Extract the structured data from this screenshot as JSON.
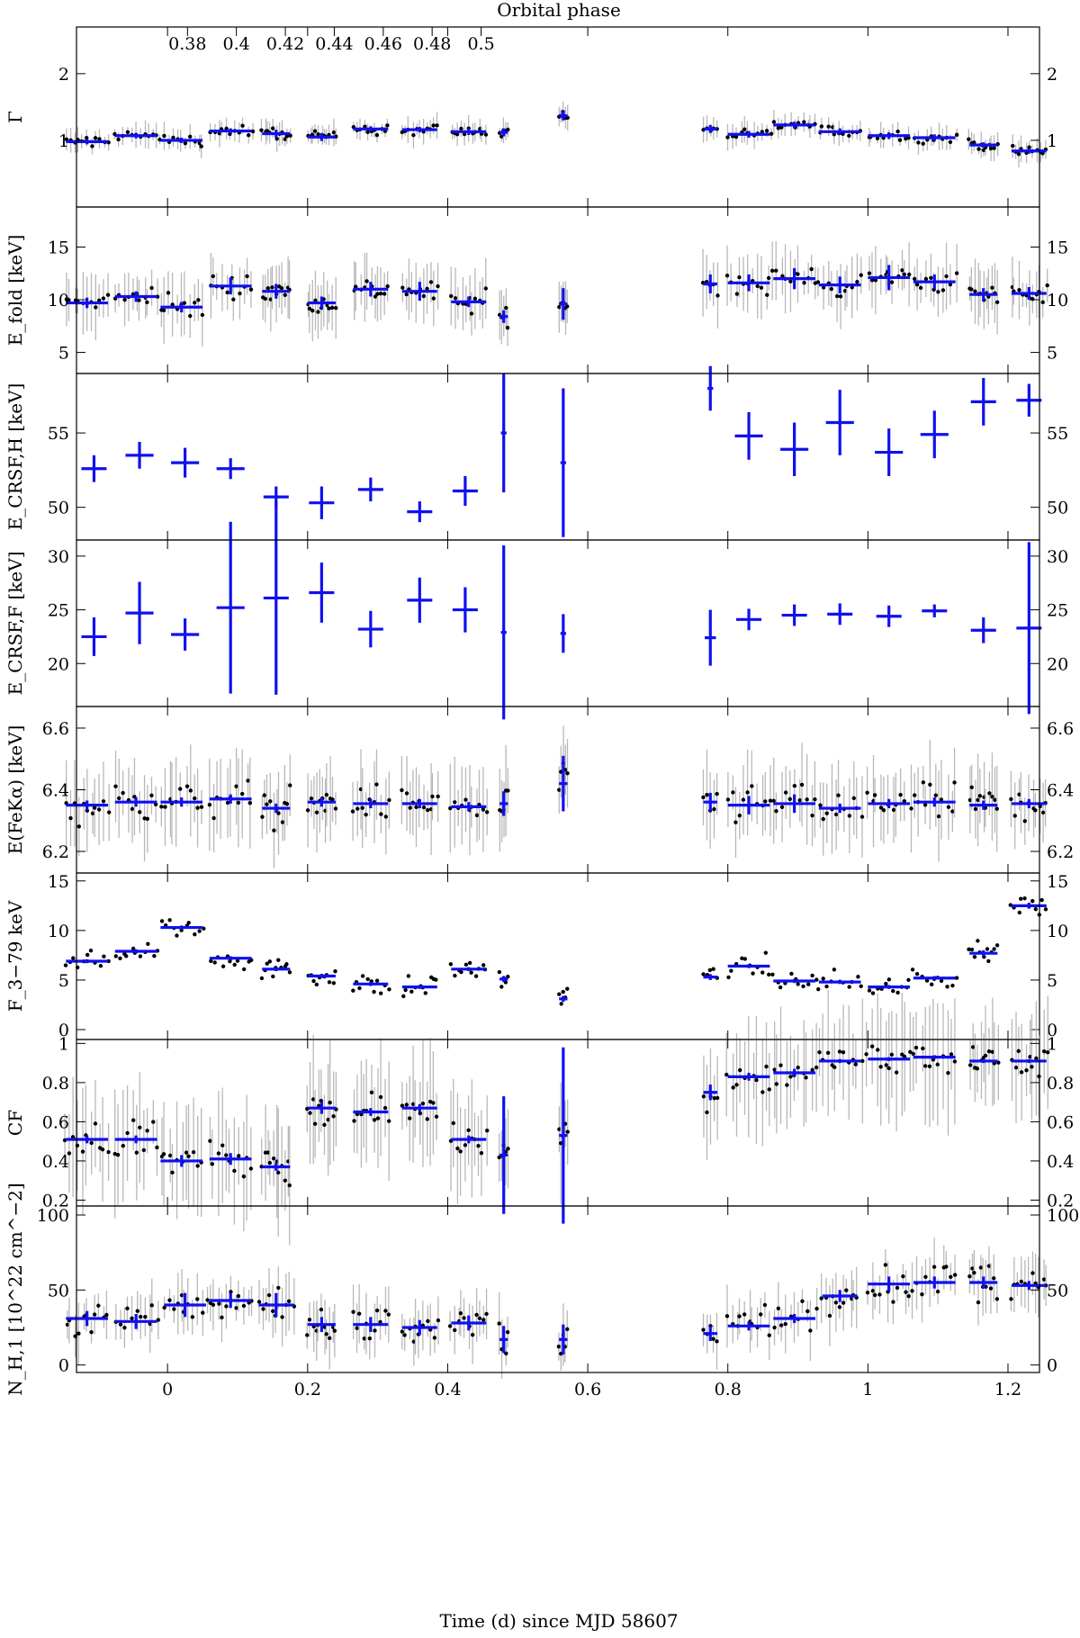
{
  "chart_data": {
    "type": "scatter",
    "xlabel": "Time (d) since MJD 58607",
    "top_xlabel": "Orbital phase",
    "xlim": [
      -0.13,
      1.245
    ],
    "x_ticks": [
      0,
      0.2,
      0.4,
      0.6,
      0.8,
      1,
      1.2
    ],
    "x_tick_labels": [
      "0",
      "0.2",
      "0.4",
      "0.6",
      "0.8",
      "1",
      "1.2"
    ],
    "phase_tick_labels": [
      "0.38",
      "0.4",
      "0.42",
      "0.44",
      "0.46",
      "0.48",
      "0.5"
    ],
    "phase_tick_x": [
      0.0285,
      0.0983,
      0.1682,
      0.2381,
      0.308,
      0.3778,
      0.4477
    ],
    "colors": {
      "binned": "#1010f0",
      "points": "#000000",
      "errors": "#b8b8b8"
    },
    "panels": [
      {
        "ylabel": "Γ",
        "ylim": [
          0.0,
          2.7
        ],
        "ticks": [
          1,
          2
        ],
        "tick_labels": [
          "1",
          "2"
        ],
        "binned": [
          [
            -0.115,
            0.98,
            0.03,
            0.04
          ],
          [
            -0.045,
            1.07,
            0.03,
            0.04
          ],
          [
            0.02,
            1.0,
            0.03,
            0.04
          ],
          [
            0.09,
            1.14,
            0.03,
            0.04
          ],
          [
            0.155,
            1.1,
            0.02,
            0.06
          ],
          [
            0.22,
            1.05,
            0.02,
            0.06
          ],
          [
            0.29,
            1.17,
            0.025,
            0.04
          ],
          [
            0.36,
            1.16,
            0.025,
            0.04
          ],
          [
            0.43,
            1.13,
            0.025,
            0.05
          ],
          [
            0.48,
            1.12,
            0.006,
            0.06
          ],
          [
            0.565,
            1.37,
            0.006,
            0.07
          ],
          [
            0.775,
            1.17,
            0.01,
            0.06
          ],
          [
            0.83,
            1.09,
            0.03,
            0.05
          ],
          [
            0.895,
            1.23,
            0.03,
            0.05
          ],
          [
            0.96,
            1.13,
            0.03,
            0.05
          ],
          [
            1.03,
            1.07,
            0.03,
            0.05
          ],
          [
            1.095,
            1.04,
            0.03,
            0.05
          ],
          [
            1.165,
            0.93,
            0.02,
            0.04
          ],
          [
            1.23,
            0.84,
            0.025,
            0.04
          ]
        ],
        "scatter_std": 0.07,
        "error_size": 0.14
      },
      {
        "ylabel": "E_fold [keV]",
        "ylim": [
          3.0,
          18.8
        ],
        "ticks": [
          5,
          10,
          15
        ],
        "tick_labels": [
          "5",
          "10",
          "15"
        ],
        "binned": [
          [
            -0.115,
            9.7,
            0.03,
            0.5
          ],
          [
            -0.045,
            10.3,
            0.03,
            0.5
          ],
          [
            0.02,
            9.3,
            0.03,
            0.5
          ],
          [
            0.09,
            11.3,
            0.03,
            0.8
          ],
          [
            0.155,
            10.8,
            0.02,
            0.7
          ],
          [
            0.22,
            9.7,
            0.02,
            0.6
          ],
          [
            0.29,
            11.0,
            0.025,
            0.7
          ],
          [
            0.36,
            10.8,
            0.025,
            0.9
          ],
          [
            0.43,
            9.8,
            0.025,
            0.5
          ],
          [
            0.48,
            8.4,
            0.006,
            0.6
          ],
          [
            0.565,
            9.6,
            0.006,
            1.5
          ],
          [
            0.775,
            11.5,
            0.01,
            0.9
          ],
          [
            0.83,
            11.6,
            0.03,
            0.8
          ],
          [
            0.895,
            12.0,
            0.03,
            1.0
          ],
          [
            0.96,
            11.4,
            0.03,
            0.8
          ],
          [
            1.03,
            12.1,
            0.03,
            1.2
          ],
          [
            1.095,
            11.7,
            0.03,
            0.7
          ],
          [
            1.165,
            10.5,
            0.02,
            0.6
          ],
          [
            1.23,
            10.6,
            0.025,
            0.6
          ]
        ],
        "scatter_std": 0.9,
        "error_size": 2.2
      },
      {
        "ylabel": "E_CRSF,H [keV]",
        "ylim": [
          47.8,
          59.0
        ],
        "ticks": [
          50,
          55
        ],
        "tick_labels": [
          "50",
          "55"
        ],
        "binned": [
          [
            -0.105,
            52.6,
            0.018,
            0.9
          ],
          [
            -0.04,
            53.5,
            0.02,
            0.9
          ],
          [
            0.025,
            53.0,
            0.02,
            1.0
          ],
          [
            0.09,
            52.6,
            0.02,
            0.7
          ],
          [
            0.155,
            50.7,
            0.018,
            0.7
          ],
          [
            0.22,
            50.3,
            0.018,
            1.1
          ],
          [
            0.29,
            51.2,
            0.018,
            0.8
          ],
          [
            0.36,
            49.7,
            0.018,
            0.7
          ],
          [
            0.425,
            51.1,
            0.018,
            1.0
          ],
          [
            0.48,
            55.0,
            0.004,
            4.0
          ],
          [
            0.565,
            53.0,
            0.004,
            5.0
          ],
          [
            0.775,
            58.0,
            0.004,
            1.5
          ],
          [
            0.83,
            54.8,
            0.02,
            1.6
          ],
          [
            0.895,
            53.9,
            0.02,
            1.8
          ],
          [
            0.96,
            55.7,
            0.02,
            2.2
          ],
          [
            1.03,
            53.7,
            0.02,
            1.6
          ],
          [
            1.095,
            54.9,
            0.02,
            1.6
          ],
          [
            1.165,
            57.1,
            0.018,
            1.6
          ],
          [
            1.23,
            57.2,
            0.018,
            1.1
          ]
        ],
        "points": false
      },
      {
        "ylabel": "E_CRSF,F [keV]",
        "ylim": [
          16.0,
          31.5
        ],
        "ticks": [
          20,
          25,
          30
        ],
        "tick_labels": [
          "20",
          "25",
          "30"
        ],
        "binned": [
          [
            -0.105,
            22.5,
            0.018,
            1.8
          ],
          [
            -0.04,
            24.7,
            0.02,
            2.9
          ],
          [
            0.025,
            22.7,
            0.02,
            1.5
          ],
          [
            0.09,
            25.2,
            0.02,
            8.0
          ],
          [
            0.155,
            26.1,
            0.018,
            9.0
          ],
          [
            0.22,
            26.6,
            0.018,
            2.8
          ],
          [
            0.29,
            23.2,
            0.018,
            1.7
          ],
          [
            0.36,
            25.9,
            0.018,
            2.1
          ],
          [
            0.425,
            25.0,
            0.018,
            2.1
          ],
          [
            0.48,
            22.9,
            0.004,
            8.1
          ],
          [
            0.565,
            22.8,
            0.004,
            1.8
          ],
          [
            0.775,
            22.4,
            0.008,
            2.6
          ],
          [
            0.83,
            24.1,
            0.018,
            1.0
          ],
          [
            0.895,
            24.5,
            0.018,
            1.0
          ],
          [
            0.96,
            24.6,
            0.018,
            1.0
          ],
          [
            1.03,
            24.4,
            0.018,
            1.0
          ],
          [
            1.095,
            24.9,
            0.018,
            0.6
          ],
          [
            1.165,
            23.1,
            0.018,
            1.2
          ],
          [
            1.23,
            23.3,
            0.018,
            8.0
          ]
        ],
        "points": false
      },
      {
        "ylabel": "E(FeKα) [keV]",
        "ylim": [
          6.13,
          6.67
        ],
        "ticks": [
          6.2,
          6.4,
          6.6
        ],
        "tick_labels": [
          "6.2",
          "6.4",
          "6.6"
        ],
        "binned": [
          [
            -0.115,
            6.35,
            0.03,
            0.015
          ],
          [
            -0.045,
            6.36,
            0.03,
            0.015
          ],
          [
            0.02,
            6.36,
            0.03,
            0.015
          ],
          [
            0.09,
            6.37,
            0.03,
            0.015
          ],
          [
            0.155,
            6.34,
            0.02,
            0.015
          ],
          [
            0.22,
            6.36,
            0.02,
            0.015
          ],
          [
            0.29,
            6.355,
            0.025,
            0.015
          ],
          [
            0.36,
            6.355,
            0.025,
            0.015
          ],
          [
            0.43,
            6.345,
            0.025,
            0.015
          ],
          [
            0.48,
            6.355,
            0.006,
            0.04
          ],
          [
            0.565,
            6.42,
            0.006,
            0.09
          ],
          [
            0.775,
            6.36,
            0.01,
            0.03
          ],
          [
            0.83,
            6.35,
            0.03,
            0.03
          ],
          [
            0.895,
            6.355,
            0.03,
            0.03
          ],
          [
            0.96,
            6.34,
            0.03,
            0.015
          ],
          [
            1.03,
            6.355,
            0.03,
            0.015
          ],
          [
            1.095,
            6.36,
            0.03,
            0.015
          ],
          [
            1.165,
            6.35,
            0.02,
            0.015
          ],
          [
            1.23,
            6.355,
            0.025,
            0.015
          ]
        ],
        "scatter_std": 0.05,
        "error_size": 0.1
      },
      {
        "ylabel": "F_3−79 keV",
        "ylim": [
          -1.0,
          15.8
        ],
        "ticks": [
          0,
          5,
          10,
          15
        ],
        "tick_labels": [
          "0",
          "5",
          "10",
          "15"
        ],
        "binned": [
          [
            -0.115,
            6.9,
            0.03,
            0.2
          ],
          [
            -0.045,
            7.9,
            0.03,
            0.2
          ],
          [
            0.02,
            10.3,
            0.03,
            0.2
          ],
          [
            0.09,
            7.2,
            0.03,
            0.2
          ],
          [
            0.155,
            6.1,
            0.02,
            0.2
          ],
          [
            0.22,
            5.4,
            0.02,
            0.2
          ],
          [
            0.29,
            4.6,
            0.025,
            0.2
          ],
          [
            0.36,
            4.3,
            0.025,
            0.2
          ],
          [
            0.43,
            6.1,
            0.025,
            0.2
          ],
          [
            0.48,
            5.1,
            0.006,
            0.3
          ],
          [
            0.565,
            3.1,
            0.006,
            0.3
          ],
          [
            0.775,
            5.3,
            0.01,
            0.3
          ],
          [
            0.83,
            6.4,
            0.03,
            0.2
          ],
          [
            0.895,
            4.9,
            0.03,
            0.2
          ],
          [
            0.96,
            4.8,
            0.03,
            0.2
          ],
          [
            1.03,
            4.3,
            0.03,
            0.2
          ],
          [
            1.095,
            5.2,
            0.03,
            0.2
          ],
          [
            1.165,
            7.7,
            0.02,
            0.3
          ],
          [
            1.23,
            12.5,
            0.025,
            0.3
          ]
        ],
        "scatter_std": 0.9,
        "error_size": 0.1
      },
      {
        "ylabel": "CF",
        "ylim": [
          0.17,
          1.02
        ],
        "ticks": [
          0.2,
          0.4,
          0.6,
          0.8,
          1
        ],
        "tick_labels": [
          "0.2",
          "0.4",
          "0.6",
          "0.8",
          "1"
        ],
        "binned": [
          [
            -0.115,
            0.51,
            0.03,
            0.02
          ],
          [
            -0.045,
            0.51,
            0.03,
            0.02
          ],
          [
            0.02,
            0.4,
            0.03,
            0.03
          ],
          [
            0.09,
            0.41,
            0.03,
            0.03
          ],
          [
            0.155,
            0.37,
            0.02,
            0.02
          ],
          [
            0.22,
            0.67,
            0.02,
            0.03
          ],
          [
            0.29,
            0.65,
            0.025,
            0.02
          ],
          [
            0.36,
            0.67,
            0.025,
            0.02
          ],
          [
            0.43,
            0.51,
            0.025,
            0.02
          ],
          [
            0.48,
            0.43,
            0.006,
            0.3
          ],
          [
            0.565,
            0.53,
            0.006,
            0.45
          ],
          [
            0.775,
            0.75,
            0.01,
            0.04
          ],
          [
            0.83,
            0.83,
            0.03,
            0.02
          ],
          [
            0.895,
            0.85,
            0.03,
            0.02
          ],
          [
            0.96,
            0.91,
            0.03,
            0.01
          ],
          [
            1.03,
            0.92,
            0.03,
            0.01
          ],
          [
            1.095,
            0.93,
            0.03,
            0.01
          ],
          [
            1.165,
            0.91,
            0.02,
            0.01
          ],
          [
            1.23,
            0.91,
            0.025,
            0.01
          ]
        ],
        "scatter_std": 0.07,
        "error_size": 0.22
      },
      {
        "ylabel": "N_H,1 [10^22 cm^−2]",
        "ylim": [
          -5.0,
          106.0
        ],
        "ticks": [
          0,
          50,
          100
        ],
        "tick_labels": [
          "0",
          "50",
          "100"
        ],
        "binned": [
          [
            -0.115,
            31,
            0.03,
            5
          ],
          [
            -0.045,
            29,
            0.03,
            5
          ],
          [
            0.025,
            40,
            0.03,
            8
          ],
          [
            0.09,
            43,
            0.03,
            5
          ],
          [
            0.155,
            40,
            0.025,
            8
          ],
          [
            0.22,
            27,
            0.02,
            5
          ],
          [
            0.29,
            27,
            0.025,
            5
          ],
          [
            0.36,
            25,
            0.025,
            5
          ],
          [
            0.43,
            28,
            0.025,
            5
          ],
          [
            0.48,
            17,
            0.006,
            9
          ],
          [
            0.565,
            17,
            0.006,
            10
          ],
          [
            0.775,
            21,
            0.01,
            5
          ],
          [
            0.83,
            26,
            0.03,
            3
          ],
          [
            0.895,
            31,
            0.03,
            3
          ],
          [
            0.96,
            46,
            0.025,
            4
          ],
          [
            1.03,
            54,
            0.03,
            5
          ],
          [
            1.095,
            55,
            0.03,
            4
          ],
          [
            1.165,
            55,
            0.02,
            4
          ],
          [
            1.23,
            53,
            0.025,
            3
          ]
        ],
        "scatter_std": 11,
        "error_size": 14
      }
    ]
  }
}
